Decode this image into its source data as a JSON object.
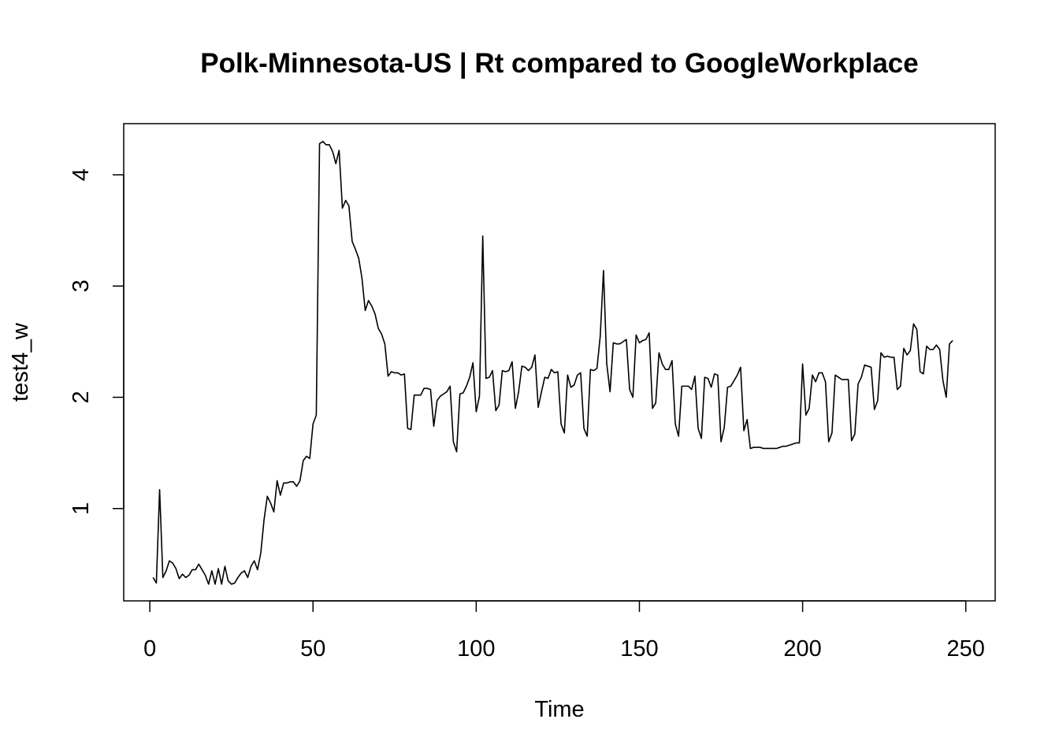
{
  "chart_data": {
    "type": "line",
    "title": "Polk-Minnesota-US | Rt compared to GoogleWorkplace",
    "xlabel": "Time",
    "ylabel": "test4_w",
    "xlim": [
      -8,
      259
    ],
    "ylim": [
      0.17,
      4.46
    ],
    "x_ticks": [
      0,
      50,
      100,
      150,
      200,
      250
    ],
    "y_ticks": [
      1,
      2,
      3,
      4
    ],
    "grid": false,
    "legend": "none",
    "line_color": "#000000",
    "series": [
      {
        "x_start": 1,
        "values": [
          0.38,
          0.33,
          1.17,
          0.38,
          0.44,
          0.53,
          0.51,
          0.46,
          0.37,
          0.41,
          0.38,
          0.4,
          0.45,
          0.45,
          0.5,
          0.45,
          0.4,
          0.32,
          0.44,
          0.32,
          0.46,
          0.32,
          0.48,
          0.35,
          0.32,
          0.33,
          0.38,
          0.42,
          0.44,
          0.38,
          0.48,
          0.53,
          0.45,
          0.6,
          0.9,
          1.11,
          1.05,
          0.97,
          1.25,
          1.12,
          1.23,
          1.23,
          1.24,
          1.24,
          1.2,
          1.25,
          1.43,
          1.47,
          1.45,
          1.76,
          1.84,
          4.28,
          4.3,
          4.27,
          4.27,
          4.21,
          4.1,
          4.22,
          3.7,
          3.77,
          3.72,
          3.4,
          3.33,
          3.25,
          3.07,
          2.78,
          2.87,
          2.82,
          2.75,
          2.62,
          2.57,
          2.48,
          2.19,
          2.23,
          2.22,
          2.22,
          2.2,
          2.21,
          1.72,
          1.71,
          2.02,
          2.02,
          2.02,
          2.08,
          2.08,
          2.07,
          1.74,
          1.97,
          2.01,
          2.03,
          2.05,
          2.1,
          1.6,
          1.51,
          2.03,
          2.04,
          2.1,
          2.18,
          2.31,
          1.87,
          2.01,
          3.45,
          2.17,
          2.18,
          2.24,
          1.88,
          1.93,
          2.24,
          2.23,
          2.24,
          2.32,
          1.9,
          2.05,
          2.28,
          2.27,
          2.24,
          2.27,
          2.38,
          1.91,
          2.05,
          2.18,
          2.17,
          2.25,
          2.22,
          2.23,
          1.76,
          1.68,
          2.2,
          2.09,
          2.11,
          2.2,
          2.22,
          1.72,
          1.65,
          2.25,
          2.24,
          2.26,
          2.55,
          3.14,
          2.3,
          2.05,
          2.49,
          2.48,
          2.48,
          2.5,
          2.52,
          2.07,
          2.0,
          2.56,
          2.49,
          2.51,
          2.52,
          2.58,
          1.9,
          1.95,
          2.4,
          2.3,
          2.25,
          2.25,
          2.33,
          1.76,
          1.65,
          2.1,
          2.1,
          2.1,
          2.07,
          2.19,
          1.72,
          1.63,
          2.18,
          2.17,
          2.09,
          2.21,
          2.2,
          1.6,
          1.73,
          2.09,
          2.1,
          2.15,
          2.2,
          2.27,
          1.7,
          1.8,
          1.54,
          1.55,
          1.55,
          1.55,
          1.54,
          1.54,
          1.54,
          1.54,
          1.54,
          1.55,
          1.56,
          1.56,
          1.57,
          1.58,
          1.59,
          1.59,
          2.3,
          1.84,
          1.9,
          2.2,
          2.14,
          2.22,
          2.22,
          2.14,
          1.6,
          1.68,
          2.2,
          2.18,
          2.16,
          2.16,
          2.16,
          1.61,
          1.67,
          2.12,
          2.18,
          2.29,
          2.28,
          2.27,
          1.89,
          1.97,
          2.4,
          2.36,
          2.37,
          2.36,
          2.36,
          2.07,
          2.1,
          2.44,
          2.38,
          2.42,
          2.66,
          2.61,
          2.23,
          2.21,
          2.46,
          2.43,
          2.43,
          2.47,
          2.43,
          2.15,
          2.0,
          2.48,
          2.51
        ]
      }
    ]
  }
}
